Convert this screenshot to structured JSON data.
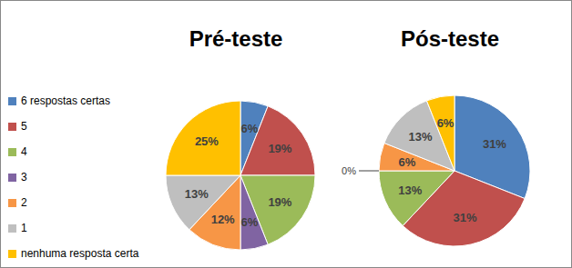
{
  "chart_data": [
    {
      "type": "pie",
      "title": "Pré-teste",
      "categories": [
        "6 respostas certas",
        "5",
        "4",
        "3",
        "2",
        "1",
        "nenhuma resposta certa"
      ],
      "values": [
        6,
        19,
        19,
        6,
        12,
        13,
        25
      ],
      "value_labels": [
        "6%",
        "19%",
        "19%",
        "6%",
        "12%",
        "13%",
        "25%"
      ],
      "colors": [
        "#4f81bd",
        "#c0504d",
        "#9bbb59",
        "#8064a2",
        "#f79646",
        "#bfbfbf",
        "#ffc000"
      ],
      "data_labels": true,
      "legend": "left"
    },
    {
      "type": "pie",
      "title": "Pós-teste",
      "categories": [
        "6 respostas certas",
        "5",
        "4",
        "3",
        "2",
        "1",
        "nenhuma resposta certa"
      ],
      "values": [
        31,
        31,
        13,
        0,
        6,
        13,
        6
      ],
      "value_labels": [
        "31%",
        "31%",
        "13%",
        "0%",
        "6%",
        "13%",
        "6%"
      ],
      "colors": [
        "#4f81bd",
        "#c0504d",
        "#9bbb59",
        "#8064a2",
        "#f79646",
        "#bfbfbf",
        "#ffc000"
      ],
      "data_labels": true
    }
  ]
}
